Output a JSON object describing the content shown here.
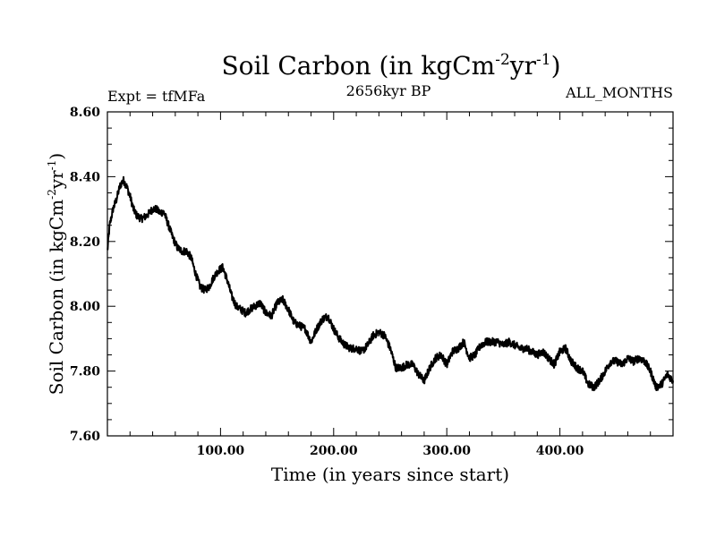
{
  "chart_data": {
    "type": "line",
    "title_main": "Soil Carbon (in kgCm",
    "title_exp1": "-2",
    "title_mid": "yr",
    "title_exp2": "-1",
    "title_end": ")",
    "subtitle_left": "Expt = tfMFa",
    "subtitle_center": "2656kyr BP",
    "subtitle_right": "ALL_MONTHS",
    "xlabel": "Time (in years since start)",
    "ylabel_main": "Soil Carbon (in kgCm",
    "ylabel_exp1": "-2",
    "ylabel_mid": "yr",
    "ylabel_exp2": "-1",
    "ylabel_end": ")",
    "xlim": [
      0,
      500
    ],
    "ylim": [
      7.6,
      8.6
    ],
    "x_ticks": [
      {
        "value": 100,
        "label": "100.00"
      },
      {
        "value": 200,
        "label": "200.00"
      },
      {
        "value": 300,
        "label": "300.00"
      },
      {
        "value": 400,
        "label": "400.00"
      }
    ],
    "y_ticks": [
      {
        "value": 7.6,
        "label": "7.60"
      },
      {
        "value": 7.8,
        "label": "7.80"
      },
      {
        "value": 8.0,
        "label": "8.00"
      },
      {
        "value": 8.2,
        "label": "8.20"
      },
      {
        "value": 8.4,
        "label": "8.40"
      },
      {
        "value": 8.6,
        "label": "8.60"
      }
    ],
    "series": [
      {
        "name": "Soil Carbon",
        "color": "#000000",
        "x": [
          0,
          2,
          5,
          8,
          11,
          14,
          17,
          20,
          23,
          26,
          30,
          35,
          40,
          43,
          46,
          50,
          54,
          58,
          62,
          66,
          70,
          74,
          78,
          82,
          86,
          90,
          94,
          98,
          102,
          106,
          110,
          114,
          118,
          122,
          126,
          130,
          135,
          140,
          145,
          150,
          155,
          160,
          165,
          170,
          175,
          180,
          185,
          190,
          195,
          200,
          205,
          210,
          215,
          220,
          225,
          230,
          235,
          240,
          245,
          250,
          255,
          260,
          265,
          270,
          275,
          280,
          285,
          290,
          295,
          300,
          305,
          310,
          315,
          320,
          325,
          330,
          335,
          340,
          345,
          350,
          355,
          360,
          365,
          370,
          375,
          380,
          385,
          390,
          395,
          400,
          405,
          410,
          415,
          420,
          425,
          430,
          435,
          440,
          445,
          450,
          455,
          460,
          465,
          470,
          475,
          480,
          485,
          490,
          495,
          500
        ],
        "y": [
          8.17,
          8.25,
          8.3,
          8.33,
          8.37,
          8.39,
          8.37,
          8.34,
          8.3,
          8.28,
          8.27,
          8.28,
          8.3,
          8.3,
          8.29,
          8.29,
          8.25,
          8.21,
          8.18,
          8.17,
          8.17,
          8.15,
          8.1,
          8.06,
          8.05,
          8.06,
          8.09,
          8.11,
          8.12,
          8.08,
          8.03,
          8.0,
          7.99,
          7.98,
          7.99,
          8.0,
          8.01,
          7.98,
          7.97,
          8.01,
          8.02,
          7.99,
          7.95,
          7.94,
          7.93,
          7.89,
          7.93,
          7.96,
          7.97,
          7.93,
          7.9,
          7.88,
          7.87,
          7.87,
          7.86,
          7.88,
          7.91,
          7.92,
          7.91,
          7.87,
          7.81,
          7.81,
          7.82,
          7.82,
          7.79,
          7.77,
          7.81,
          7.84,
          7.85,
          7.82,
          7.86,
          7.87,
          7.89,
          7.84,
          7.85,
          7.88,
          7.89,
          7.89,
          7.89,
          7.88,
          7.89,
          7.88,
          7.87,
          7.87,
          7.86,
          7.85,
          7.86,
          7.84,
          7.82,
          7.86,
          7.87,
          7.83,
          7.81,
          7.8,
          7.76,
          7.75,
          7.77,
          7.8,
          7.83,
          7.83,
          7.82,
          7.84,
          7.83,
          7.84,
          7.83,
          7.8,
          7.75,
          7.76,
          7.79,
          7.77
        ]
      }
    ],
    "noise_amplitude": 0.012
  }
}
